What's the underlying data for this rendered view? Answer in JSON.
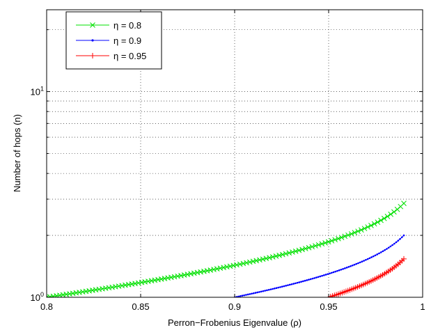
{
  "chart_data": {
    "type": "line",
    "xlabel": "Perron−Frobenius Eigenvalue (ρ)",
    "ylabel": "Number of hops (n)",
    "xlim": [
      0.8,
      1.0
    ],
    "ylim": [
      1,
      25
    ],
    "yscale": "log",
    "grid": true,
    "legend_position": "top-left",
    "x_ticks": [
      {
        "value": 0.8,
        "label": "0.8"
      },
      {
        "value": 0.85,
        "label": "0.85"
      },
      {
        "value": 0.9,
        "label": "0.9"
      },
      {
        "value": 0.95,
        "label": "0.95"
      },
      {
        "value": 1.0,
        "label": "1"
      }
    ],
    "y_ticks": [
      {
        "value": 1,
        "base": "10",
        "exp": "0"
      },
      {
        "value": 10,
        "base": "10",
        "exp": "1"
      }
    ],
    "series": [
      {
        "name": "η = 0.8",
        "eta": 0.8,
        "x_start": 0.8,
        "x_end": 0.99,
        "n_points": 110,
        "color": "#00e000",
        "marker": "x"
      },
      {
        "name": "η = 0.9",
        "eta": 0.9,
        "x_start": 0.9,
        "x_end": 0.99,
        "n_points": 90,
        "color": "#0000ff",
        "marker": "dot"
      },
      {
        "name": "η = 0.95",
        "eta": 0.95,
        "x_start": 0.95,
        "x_end": 0.99,
        "n_points": 40,
        "color": "#ff0000",
        "marker": "+"
      }
    ]
  }
}
